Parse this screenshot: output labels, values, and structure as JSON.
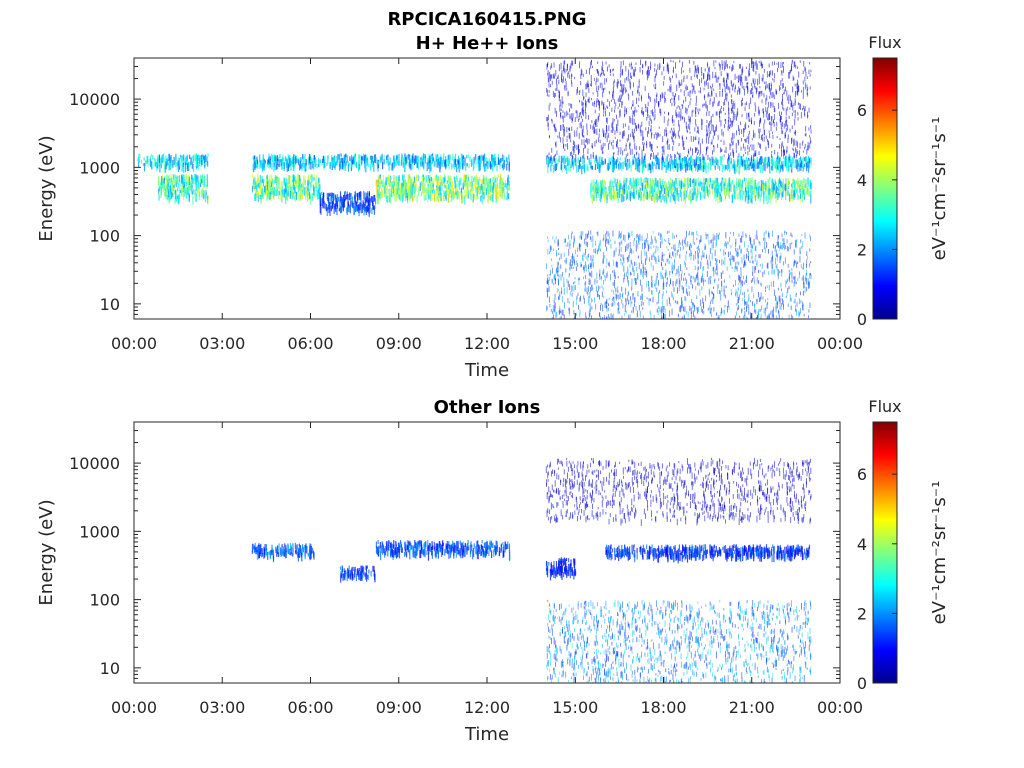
{
  "figure": {
    "title": "RPCICA160415.PNG"
  },
  "chart_data": [
    {
      "type": "heatmap",
      "title": "H+ He++ Ions",
      "xlabel": "Time",
      "ylabel": "Energy (eV)",
      "x_ticks": [
        "00:00",
        "03:00",
        "06:00",
        "09:00",
        "12:00",
        "15:00",
        "18:00",
        "21:00",
        "00:00"
      ],
      "x_range_hours": [
        0,
        24
      ],
      "y_scale": "log",
      "y_range": [
        6,
        40000
      ],
      "y_ticks": [
        {
          "value": 10,
          "label": "10"
        },
        {
          "value": 100,
          "label": "100"
        },
        {
          "value": 1000,
          "label": "1000"
        },
        {
          "value": 10000,
          "label": "10000"
        }
      ],
      "colorbar": {
        "title": "Flux",
        "units": "eV⁻¹cm⁻²sr⁻¹s⁻¹",
        "range": [
          0,
          7.5
        ],
        "ticks": [
          "0",
          "2",
          "4",
          "6"
        ],
        "colormap": "jet"
      },
      "data_gaps_hours": [
        [
          2.5,
          4.0
        ],
        [
          12.75,
          14.0
        ],
        [
          23.0,
          24.0
        ]
      ],
      "bands": [
        {
          "t_start": 0.1,
          "t_end": 2.5,
          "e_low": 1100,
          "e_high": 1600,
          "flux": 2.6
        },
        {
          "t_start": 0.8,
          "t_end": 2.5,
          "e_low": 380,
          "e_high": 800,
          "flux": 3.3
        },
        {
          "t_start": 4.0,
          "t_end": 12.75,
          "e_low": 1100,
          "e_high": 1600,
          "flux": 2.5
        },
        {
          "t_start": 4.0,
          "t_end": 6.3,
          "e_low": 380,
          "e_high": 800,
          "flux": 3.6
        },
        {
          "t_start": 6.3,
          "t_end": 8.2,
          "e_low": 250,
          "e_high": 450,
          "flux": 1.5
        },
        {
          "t_start": 8.2,
          "t_end": 12.75,
          "e_low": 380,
          "e_high": 800,
          "flux": 3.8
        },
        {
          "t_start": 14.0,
          "t_end": 23.0,
          "e_low": 1050,
          "e_high": 1500,
          "flux": 2.6
        },
        {
          "t_start": 15.5,
          "t_end": 23.0,
          "e_low": 380,
          "e_high": 720,
          "flux": 3.4
        },
        {
          "t_start": 14.0,
          "t_end": 23.0,
          "e_low": 6,
          "e_high": 120,
          "flux": 1.8
        },
        {
          "t_start": 14.0,
          "t_end": 23.0,
          "e_low": 1500,
          "e_high": 38000,
          "flux": 0.8
        }
      ]
    },
    {
      "type": "heatmap",
      "title": "Other Ions",
      "xlabel": "Time",
      "ylabel": "Energy (eV)",
      "x_ticks": [
        "00:00",
        "03:00",
        "06:00",
        "09:00",
        "12:00",
        "15:00",
        "18:00",
        "21:00",
        "00:00"
      ],
      "x_range_hours": [
        0,
        24
      ],
      "y_scale": "log",
      "y_range": [
        6,
        40000
      ],
      "y_ticks": [
        {
          "value": 10,
          "label": "10"
        },
        {
          "value": 100,
          "label": "100"
        },
        {
          "value": 1000,
          "label": "1000"
        },
        {
          "value": 10000,
          "label": "10000"
        }
      ],
      "colorbar": {
        "title": "Flux",
        "units": "eV⁻¹cm⁻²sr⁻¹s⁻¹",
        "range": [
          0,
          7.5
        ],
        "ticks": [
          "0",
          "2",
          "4",
          "6"
        ],
        "colormap": "jet"
      },
      "data_gaps_hours": [
        [
          12.75,
          14.0
        ],
        [
          23.0,
          24.0
        ]
      ],
      "bands": [
        {
          "t_start": 4.0,
          "t_end": 6.1,
          "e_low": 480,
          "e_high": 680,
          "flux": 1.8
        },
        {
          "t_start": 7.0,
          "t_end": 8.2,
          "e_low": 230,
          "e_high": 320,
          "flux": 1.5
        },
        {
          "t_start": 8.2,
          "t_end": 12.75,
          "e_low": 500,
          "e_high": 750,
          "flux": 1.6
        },
        {
          "t_start": 14.0,
          "t_end": 15.0,
          "e_low": 250,
          "e_high": 420,
          "flux": 1.2
        },
        {
          "t_start": 16.0,
          "t_end": 23.0,
          "e_low": 450,
          "e_high": 650,
          "flux": 1.4
        },
        {
          "t_start": 14.0,
          "t_end": 23.0,
          "e_low": 6,
          "e_high": 100,
          "flux": 2.0
        },
        {
          "t_start": 14.0,
          "t_end": 23.0,
          "e_low": 1500,
          "e_high": 12000,
          "flux": 0.6
        }
      ]
    }
  ]
}
